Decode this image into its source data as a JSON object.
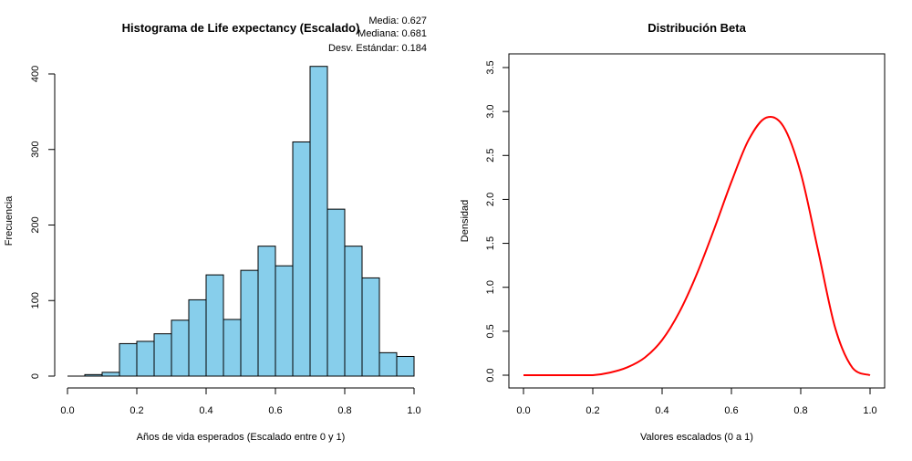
{
  "chart_data": [
    {
      "type": "bar",
      "title": "Histograma de Life expectancy (Escalado)",
      "xlabel": "Años de vida esperados (Escalado entre 0 y 1)",
      "ylabel": "Frecuencia",
      "xlim": [
        0,
        1
      ],
      "ylim": [
        0,
        410
      ],
      "xticks": [
        "0.0",
        "0.2",
        "0.4",
        "0.6",
        "0.8",
        "1.0"
      ],
      "yticks": [
        "0",
        "100",
        "200",
        "300",
        "400"
      ],
      "bin_width": 0.05,
      "bins": [
        {
          "x0": 0.0,
          "x1": 0.05,
          "value": 0
        },
        {
          "x0": 0.05,
          "x1": 0.1,
          "value": 2
        },
        {
          "x0": 0.1,
          "x1": 0.15,
          "value": 5
        },
        {
          "x0": 0.15,
          "x1": 0.2,
          "value": 43
        },
        {
          "x0": 0.2,
          "x1": 0.25,
          "value": 46
        },
        {
          "x0": 0.25,
          "x1": 0.3,
          "value": 56
        },
        {
          "x0": 0.3,
          "x1": 0.35,
          "value": 74
        },
        {
          "x0": 0.35,
          "x1": 0.4,
          "value": 101
        },
        {
          "x0": 0.4,
          "x1": 0.45,
          "value": 134
        },
        {
          "x0": 0.45,
          "x1": 0.5,
          "value": 75
        },
        {
          "x0": 0.5,
          "x1": 0.55,
          "value": 140
        },
        {
          "x0": 0.55,
          "x1": 0.6,
          "value": 172
        },
        {
          "x0": 0.6,
          "x1": 0.65,
          "value": 146
        },
        {
          "x0": 0.65,
          "x1": 0.7,
          "value": 310
        },
        {
          "x0": 0.7,
          "x1": 0.75,
          "value": 410
        },
        {
          "x0": 0.75,
          "x1": 0.8,
          "value": 221
        },
        {
          "x0": 0.8,
          "x1": 0.85,
          "value": 172
        },
        {
          "x0": 0.85,
          "x1": 0.9,
          "value": 130
        },
        {
          "x0": 0.9,
          "x1": 0.95,
          "value": 31
        },
        {
          "x0": 0.95,
          "x1": 1.0,
          "value": 26
        }
      ],
      "bar_color": "#87CEEB",
      "annotations": [
        "Media: 0.627",
        "Mediana: 0.681",
        "Desv. Estándar: 0.184"
      ]
    },
    {
      "type": "line",
      "title": "Distribución Beta",
      "xlabel": "Valores escalados (0 a 1)",
      "ylabel": "Densidad",
      "xlim": [
        0,
        1
      ],
      "ylim": [
        0,
        3.5
      ],
      "xticks": [
        "0.0",
        "0.2",
        "0.4",
        "0.6",
        "0.8",
        "1.0"
      ],
      "yticks": [
        "0.0",
        "0.5",
        "1.0",
        "1.5",
        "2.0",
        "2.5",
        "3.0",
        "3.5"
      ],
      "line_color": "#FF0000",
      "points": [
        [
          0.0,
          0.0
        ],
        [
          0.05,
          0.0
        ],
        [
          0.1,
          0.0
        ],
        [
          0.15,
          0.0
        ],
        [
          0.2,
          0.0
        ],
        [
          0.25,
          0.03
        ],
        [
          0.3,
          0.09
        ],
        [
          0.35,
          0.2
        ],
        [
          0.4,
          0.4
        ],
        [
          0.45,
          0.72
        ],
        [
          0.5,
          1.15
        ],
        [
          0.55,
          1.66
        ],
        [
          0.6,
          2.2
        ],
        [
          0.65,
          2.68
        ],
        [
          0.7,
          2.93
        ],
        [
          0.75,
          2.83
        ],
        [
          0.8,
          2.3
        ],
        [
          0.85,
          1.42
        ],
        [
          0.9,
          0.53
        ],
        [
          0.95,
          0.08
        ],
        [
          1.0,
          0.0
        ]
      ]
    }
  ]
}
